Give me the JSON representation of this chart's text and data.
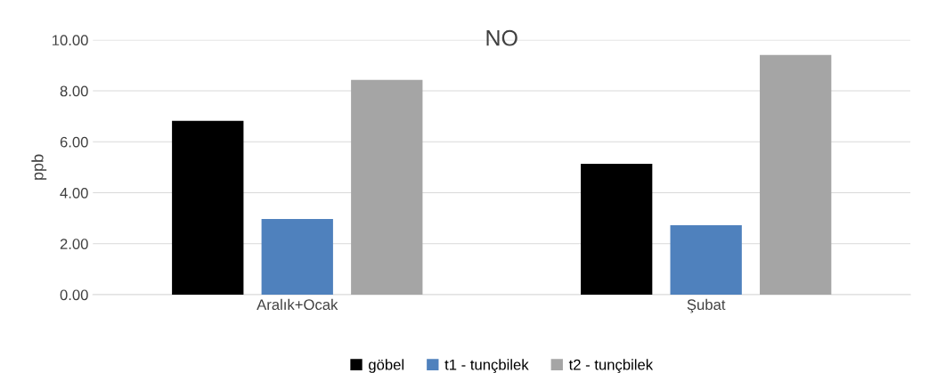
{
  "chart_data": {
    "type": "bar",
    "title": "NO",
    "ylabel": "ppb",
    "categories": [
      "Aralık+Ocak",
      "Şubat"
    ],
    "series": [
      {
        "name": "göbel",
        "color": "#000000",
        "values": [
          6.82,
          5.14
        ]
      },
      {
        "name": "t1 - tunçbilek",
        "color": "#4f81bd",
        "values": [
          2.97,
          2.73
        ]
      },
      {
        "name": "t2 - tunçbilek",
        "color": "#a5a5a5",
        "values": [
          8.43,
          9.41
        ]
      }
    ],
    "ylim": [
      0,
      10
    ],
    "yticks": [
      {
        "value": 0,
        "label": "0.00"
      },
      {
        "value": 2,
        "label": "2.00"
      },
      {
        "value": 4,
        "label": "4.00"
      },
      {
        "value": 6,
        "label": "6.00"
      },
      {
        "value": 8,
        "label": "8.00"
      },
      {
        "value": 10,
        "label": "10.00"
      }
    ],
    "grid": "y",
    "legend": "bottom"
  }
}
